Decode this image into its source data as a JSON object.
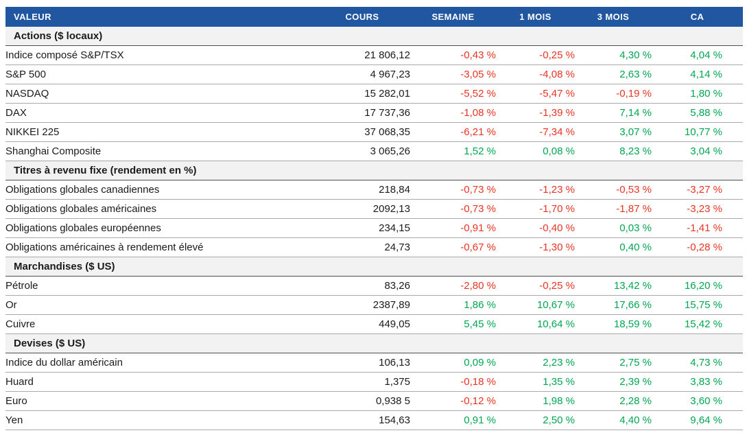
{
  "colors": {
    "header_background": "#2156A0",
    "header_text": "#FFFFFF",
    "section_background": "#F2F2F2",
    "positive": "#00A550",
    "negative": "#E93323",
    "text": "#1A1A1A",
    "row_line": "#A8A8A8",
    "section_line": "#4D4D4D"
  },
  "table": {
    "columns": [
      "VALEUR",
      "COURS",
      "SEMAINE",
      "1 MOIS",
      "3 MOIS",
      "CA"
    ],
    "sections": [
      {
        "title": "Actions ($ locaux)",
        "rows": [
          [
            "Indice composé S&P/TSX",
            "21 806,12",
            "-0,43 %",
            "-0,25 %",
            "4,30 %",
            "4,04 %"
          ],
          [
            "S&P 500",
            "4 967,23",
            "-3,05 %",
            "-4,08 %",
            "2,63 %",
            "4,14 %"
          ],
          [
            "NASDAQ",
            "15 282,01",
            "-5,52 %",
            "-5,47 %",
            "-0,19 %",
            "1,80 %"
          ],
          [
            "DAX",
            "17 737,36",
            "-1,08 %",
            "-1,39 %",
            "7,14 %",
            "5,88 %"
          ],
          [
            "NIKKEI 225",
            "37 068,35",
            "-6,21 %",
            "-7,34 %",
            "3,07 %",
            "10,77 %"
          ],
          [
            "Shanghai Composite",
            "3 065,26",
            "1,52 %",
            "0,08 %",
            "8,23 %",
            "3,04 %"
          ]
        ]
      },
      {
        "title": "Titres à revenu fixe (rendement en %)",
        "rows": [
          [
            "Obligations globales canadiennes",
            "218,84",
            "-0,73 %",
            "-1,23 %",
            "-0,53 %",
            "-3,27 %"
          ],
          [
            "Obligations globales américaines",
            "2092,13",
            "-0,73 %",
            "-1,70 %",
            "-1,87 %",
            "-3,23 %"
          ],
          [
            "Obligations globales européennes",
            "234,15",
            "-0,91 %",
            "-0,40 %",
            "0,03 %",
            "-1,41 %"
          ],
          [
            "Obligations américaines à rendement élevé",
            "24,73",
            "-0,67 %",
            "-1,30 %",
            "0,40 %",
            "-0,28 %"
          ]
        ]
      },
      {
        "title": "Marchandises ($ US)",
        "rows": [
          [
            "Pétrole",
            "83,26",
            "-2,80 %",
            "-0,25 %",
            "13,42 %",
            "16,20 %"
          ],
          [
            "Or",
            "2387,89",
            "1,86 %",
            "10,67 %",
            "17,66 %",
            "15,75 %"
          ],
          [
            "Cuivre",
            "449,05",
            "5,45 %",
            "10,64 %",
            "18,59 %",
            "15,42 %"
          ]
        ]
      },
      {
        "title": "Devises ($ US)",
        "rows": [
          [
            "Indice du dollar américain",
            "106,13",
            "0,09 %",
            "2,23 %",
            "2,75 %",
            "4,73 %"
          ],
          [
            "Huard",
            "1,375",
            "-0,18 %",
            "1,35 %",
            "2,39 %",
            "3,83 %"
          ],
          [
            "Euro",
            "0,938 5",
            "-0,12 %",
            "1,98 %",
            "2,28 %",
            "3,60 %"
          ],
          [
            "Yen",
            "154,63",
            "0,91 %",
            "2,50 %",
            "4,40 %",
            "9,64 %"
          ]
        ]
      }
    ]
  }
}
